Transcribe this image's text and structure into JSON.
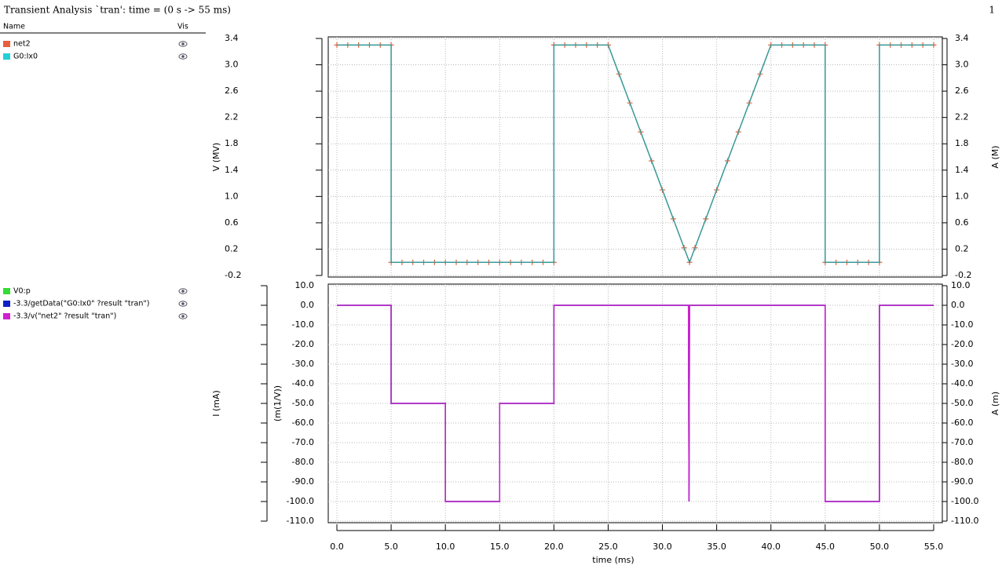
{
  "title": "Transient Analysis `tran': time = (0 s -> 55 ms)",
  "window_number": "1",
  "legend_header": {
    "name": "Name",
    "vis": "Vis"
  },
  "chart_data": [
    {
      "type": "line",
      "ylabel": "V (MV)",
      "y2label": "A (M)",
      "grid": true,
      "ylim": [
        -0.2,
        3.4
      ],
      "yticks": [
        -0.2,
        0.2,
        0.6,
        {
          "value": 1.0,
          "label": "1.0"
        },
        1.4,
        1.8,
        2.2,
        2.6,
        {
          "value": 3.0,
          "label": "3.0"
        },
        3.4
      ],
      "y2lim": [
        -0.2,
        3.4
      ],
      "y2ticks": [
        -0.2,
        0.2,
        0.6,
        {
          "value": 1.0,
          "label": "1.0"
        },
        1.4,
        1.8,
        2.2,
        2.6,
        {
          "value": 3.0,
          "label": "3.0"
        },
        3.4
      ],
      "xlim": [
        0,
        55
      ],
      "x": [
        0,
        1,
        2,
        3,
        4,
        5,
        5,
        6,
        7,
        8,
        9,
        10,
        11,
        12,
        13,
        14,
        15,
        16,
        17,
        18,
        19,
        20,
        20,
        21,
        22,
        23,
        24,
        25,
        26,
        27,
        28,
        29,
        30,
        31,
        32,
        32.5,
        33,
        34,
        35,
        36,
        37,
        38,
        39,
        40,
        41,
        42,
        43,
        44,
        45,
        45,
        46,
        47,
        48,
        49,
        50,
        50,
        51,
        52,
        53,
        54,
        55
      ],
      "series": [
        {
          "name": "net2",
          "color": "#e8603c",
          "markers": true,
          "values": [
            3.3,
            3.3,
            3.3,
            3.3,
            3.3,
            3.3,
            0,
            0,
            0,
            0,
            0,
            0,
            0,
            0,
            0,
            0,
            0,
            0,
            0,
            0,
            0,
            0,
            3.3,
            3.3,
            3.3,
            3.3,
            3.3,
            3.3,
            2.86,
            2.42,
            1.98,
            1.54,
            1.1,
            0.66,
            0.22,
            0,
            0.22,
            0.66,
            1.1,
            1.54,
            1.98,
            2.42,
            2.86,
            3.3,
            3.3,
            3.3,
            3.3,
            3.3,
            3.3,
            0,
            0,
            0,
            0,
            0,
            0,
            3.3,
            3.3,
            3.3,
            3.3,
            3.3,
            3.3
          ]
        },
        {
          "name": "G0:Ix0",
          "color": "#22d0d8",
          "markers": false,
          "values": [
            3.3,
            3.3,
            3.3,
            3.3,
            3.3,
            3.3,
            0,
            0,
            0,
            0,
            0,
            0,
            0,
            0,
            0,
            0,
            0,
            0,
            0,
            0,
            0,
            0,
            3.3,
            3.3,
            3.3,
            3.3,
            3.3,
            3.3,
            2.86,
            2.42,
            1.98,
            1.54,
            1.1,
            0.66,
            0.22,
            0,
            0.22,
            0.66,
            1.1,
            1.54,
            1.98,
            2.42,
            2.86,
            3.3,
            3.3,
            3.3,
            3.3,
            3.3,
            3.3,
            0,
            0,
            0,
            0,
            0,
            0,
            3.3,
            3.3,
            3.3,
            3.3,
            3.3,
            3.3
          ]
        }
      ]
    },
    {
      "type": "line",
      "xlabel": "time (ms)",
      "ylabel": "I (mA)",
      "ylabel_extra": "(m(1/V))",
      "y2label": "A (m)",
      "grid": true,
      "ylim": [
        -110,
        10
      ],
      "yticks": [
        {
          "value": -110,
          "label": "-110.0"
        },
        {
          "value": -100,
          "label": "-100.0"
        },
        {
          "value": -90,
          "label": "-90.0"
        },
        {
          "value": -80,
          "label": "-80.0"
        },
        {
          "value": -70,
          "label": "-70.0"
        },
        {
          "value": -60,
          "label": "-60.0"
        },
        {
          "value": -50,
          "label": "-50.0"
        },
        {
          "value": -40,
          "label": "-40.0"
        },
        {
          "value": -30,
          "label": "-30.0"
        },
        {
          "value": -20,
          "label": "-20.0"
        },
        {
          "value": -10,
          "label": "-10.0"
        },
        {
          "value": 0,
          "label": "0.0"
        },
        {
          "value": 10,
          "label": "10.0"
        }
      ],
      "y2lim": [
        -110,
        10
      ],
      "y2ticks": [
        {
          "value": -110,
          "label": "-110.0"
        },
        {
          "value": -100,
          "label": "-100.0"
        },
        {
          "value": -90,
          "label": "-90.0"
        },
        {
          "value": -80,
          "label": "-80.0"
        },
        {
          "value": -70,
          "label": "-70.0"
        },
        {
          "value": -60,
          "label": "-60.0"
        },
        {
          "value": -50,
          "label": "-50.0"
        },
        {
          "value": -40,
          "label": "-40.0"
        },
        {
          "value": -30,
          "label": "-30.0"
        },
        {
          "value": -20,
          "label": "-20.0"
        },
        {
          "value": -10,
          "label": "-10.0"
        },
        {
          "value": 0,
          "label": "0.0"
        },
        {
          "value": 10,
          "label": "10.0"
        }
      ],
      "xlim": [
        0,
        55
      ],
      "xticks": [
        {
          "value": 0,
          "label": "0.0"
        },
        {
          "value": 5,
          "label": "5.0"
        },
        {
          "value": 10,
          "label": "10.0"
        },
        {
          "value": 15,
          "label": "15.0"
        },
        {
          "value": 20,
          "label": "20.0"
        },
        {
          "value": 25,
          "label": "25.0"
        },
        {
          "value": 30,
          "label": "30.0"
        },
        {
          "value": 35,
          "label": "35.0"
        },
        {
          "value": 40,
          "label": "40.0"
        },
        {
          "value": 45,
          "label": "45.0"
        },
        {
          "value": 50,
          "label": "50.0"
        },
        {
          "value": 55,
          "label": "55.0"
        }
      ],
      "x": [
        0,
        5,
        5,
        10,
        10,
        15,
        15,
        20,
        20,
        32.4,
        32.45,
        32.5,
        45,
        45,
        50,
        50,
        55
      ],
      "series": [
        {
          "name": "V0:p",
          "color": "#33dd33",
          "values": [
            0,
            0,
            -50,
            -50,
            -100,
            -100,
            -50,
            -50,
            0,
            0,
            -100,
            0,
            0,
            -100,
            -100,
            0,
            0
          ]
        },
        {
          "name": "-3.3/getData(\"G0:Ix0\" ?result \"tran\")",
          "color": "#1020c8",
          "values": [
            0,
            0,
            -50,
            -50,
            -100,
            -100,
            -50,
            -50,
            0,
            0,
            -100,
            0,
            0,
            -100,
            -100,
            0,
            0
          ]
        },
        {
          "name": "-3.3/v(\"net2\" ?result \"tran\")",
          "color": "#d020d0",
          "values": [
            0,
            0,
            -50,
            -50,
            -100,
            -100,
            -50,
            -50,
            0,
            0,
            -100,
            0,
            0,
            -100,
            -100,
            0,
            0
          ]
        }
      ]
    }
  ]
}
